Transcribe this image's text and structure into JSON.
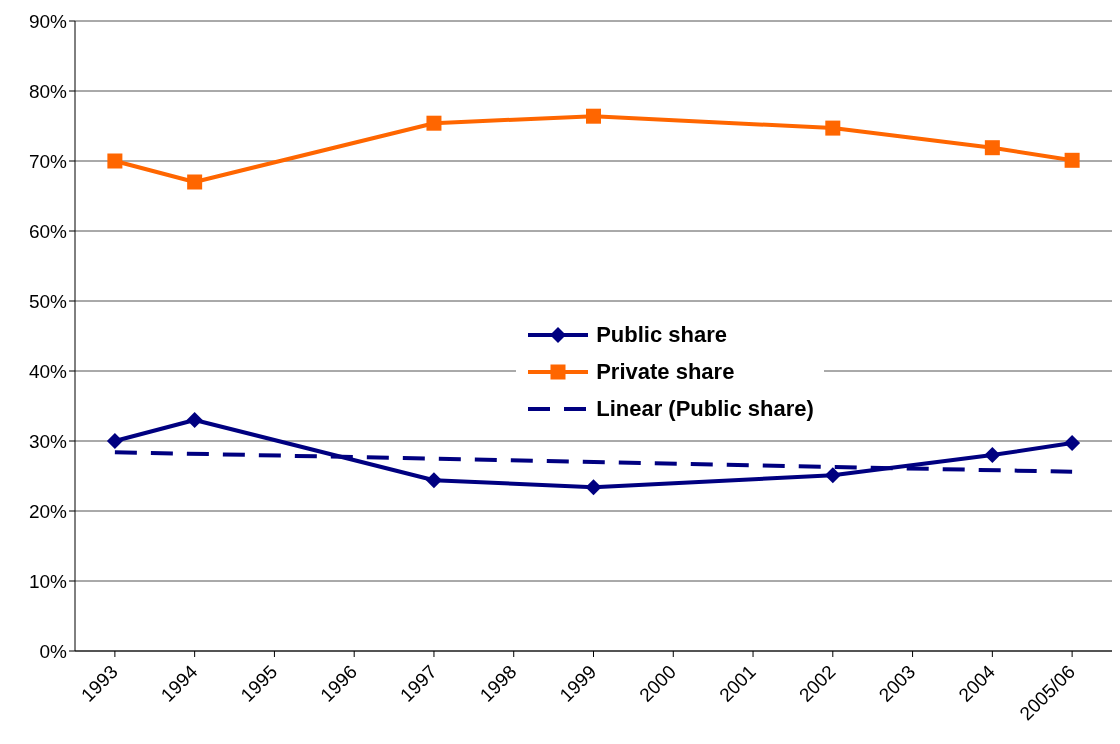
{
  "chart_data": {
    "type": "line",
    "categories": [
      "1993",
      "1994",
      "1995",
      "1996",
      "1997",
      "1998",
      "1999",
      "2000",
      "2001",
      "2002",
      "2003",
      "2004",
      "2005/06"
    ],
    "series": [
      {
        "name": "Public share",
        "color": "#000080",
        "marker": "diamond",
        "values": [
          30,
          33,
          null,
          null,
          24.4,
          null,
          23.4,
          null,
          null,
          25.1,
          null,
          28,
          29.7
        ]
      },
      {
        "name": "Private share",
        "color": "#ff6600",
        "marker": "square",
        "values": [
          70,
          67,
          null,
          null,
          75.4,
          null,
          76.4,
          null,
          null,
          74.7,
          null,
          71.9,
          70.1
        ]
      },
      {
        "name": "Linear (Public share)",
        "type": "line",
        "color": "#000080",
        "marker": "none",
        "line_style": "dashed",
        "values": [
          28.4,
          null,
          null,
          null,
          null,
          null,
          null,
          null,
          null,
          null,
          null,
          null,
          25.6
        ]
      }
    ],
    "ylim": [
      0,
      90
    ],
    "yticks": [
      {
        "value": 0,
        "label": "0%"
      },
      {
        "value": 10,
        "label": "10%"
      },
      {
        "value": 20,
        "label": "20%"
      },
      {
        "value": 30,
        "label": "30%"
      },
      {
        "value": 40,
        "label": "40%"
      },
      {
        "value": 50,
        "label": "50%"
      },
      {
        "value": 60,
        "label": "60%"
      },
      {
        "value": 70,
        "label": "70%"
      },
      {
        "value": 80,
        "label": "80%"
      },
      {
        "value": 90,
        "label": "90%"
      }
    ],
    "grid": "y",
    "legend": "center"
  }
}
